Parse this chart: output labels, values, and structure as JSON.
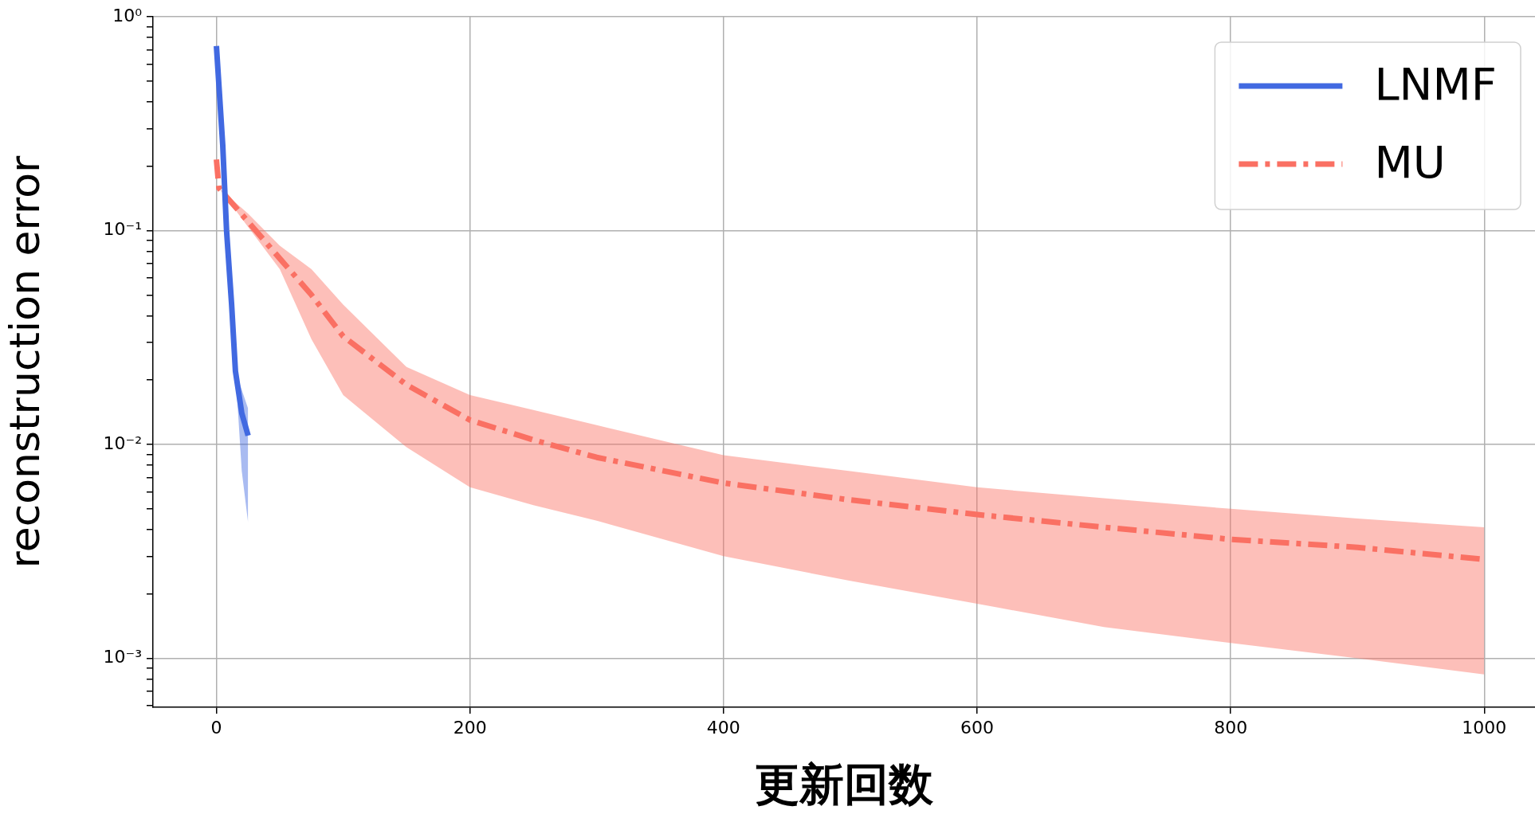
{
  "chart_data": {
    "type": "line",
    "xlabel": "更新回数",
    "ylabel": "reconstruction error",
    "log": "y",
    "grid": true,
    "legend": "top right",
    "marker": "none",
    "xlim": [
      -50,
      1040
    ],
    "xticks": [
      0,
      200,
      400,
      600,
      800,
      1000
    ],
    "ylim": [
      0.00059,
      1
    ],
    "yticks": [
      {
        "value": 1,
        "label": "10⁰"
      },
      {
        "value": 0.1,
        "label": "10⁻¹"
      },
      {
        "value": 0.01,
        "label": "10⁻²"
      },
      {
        "value": 0.001,
        "label": "10⁻³"
      },
      {
        "value": 0.9,
        "label": null
      },
      {
        "value": 0.8,
        "label": null
      },
      {
        "value": 0.7,
        "label": null
      },
      {
        "value": 0.6,
        "label": null
      },
      {
        "value": 0.5,
        "label": null
      },
      {
        "value": 0.4,
        "label": null
      },
      {
        "value": 0.3,
        "label": null
      },
      {
        "value": 0.2,
        "label": null
      },
      {
        "value": 0.09,
        "label": null
      },
      {
        "value": 0.08,
        "label": null
      },
      {
        "value": 0.07,
        "label": null
      },
      {
        "value": 0.06,
        "label": null
      },
      {
        "value": 0.05,
        "label": null
      },
      {
        "value": 0.04,
        "label": null
      },
      {
        "value": 0.03,
        "label": null
      },
      {
        "value": 0.02,
        "label": null
      },
      {
        "value": 0.009,
        "label": null
      },
      {
        "value": 0.008,
        "label": null
      },
      {
        "value": 0.007,
        "label": null
      },
      {
        "value": 0.006,
        "label": null
      },
      {
        "value": 0.005,
        "label": null
      },
      {
        "value": 0.004,
        "label": null
      },
      {
        "value": 0.003,
        "label": null
      },
      {
        "value": 0.002,
        "label": null
      },
      {
        "value": 0.0009,
        "label": null
      },
      {
        "value": 0.0008,
        "label": null
      },
      {
        "value": 0.0007,
        "label": null
      },
      {
        "value": 0.0006,
        "label": null
      }
    ],
    "series": [
      {
        "name": "LNMF",
        "color": "#4169e1",
        "line_style": "solid",
        "x": [
          0,
          5,
          8,
          12,
          15,
          20,
          25
        ],
        "values": [
          0.73,
          0.25,
          0.1,
          0.045,
          0.022,
          0.014,
          0.011
        ],
        "lower": [
          0.73,
          0.25,
          0.1,
          0.045,
          0.022,
          0.0075,
          0.0043
        ],
        "upper": [
          0.73,
          0.25,
          0.1,
          0.045,
          0.022,
          0.018,
          0.0147
        ]
      },
      {
        "name": "MU",
        "color": "#fa7063",
        "line_style": "dashdot",
        "x": [
          0,
          2,
          25,
          50,
          75,
          100,
          150,
          200,
          250,
          300,
          400,
          500,
          600,
          700,
          800,
          900,
          1000
        ],
        "values": [
          0.215,
          0.158,
          0.11,
          0.074,
          0.05,
          0.032,
          0.019,
          0.013,
          0.0105,
          0.0087,
          0.0066,
          0.0055,
          0.0047,
          0.0041,
          0.0036,
          0.0033,
          0.0029
        ],
        "lower": [
          0.215,
          0.158,
          0.104,
          0.066,
          0.031,
          0.017,
          0.0097,
          0.0063,
          0.0052,
          0.0044,
          0.003,
          0.0023,
          0.0018,
          0.0014,
          0.00118,
          0.001,
          0.00084
        ],
        "upper": [
          0.215,
          0.158,
          0.12,
          0.085,
          0.066,
          0.045,
          0.023,
          0.017,
          0.0145,
          0.0123,
          0.0089,
          0.0075,
          0.0063,
          0.0056,
          0.005,
          0.0045,
          0.0041
        ]
      }
    ]
  }
}
